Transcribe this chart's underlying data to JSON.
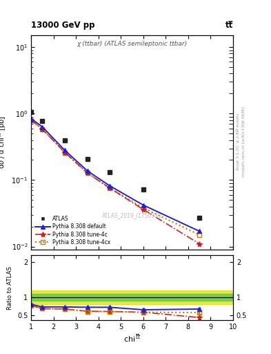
{
  "title_left": "13000 GeV pp",
  "title_right": "tt̅",
  "main_title": "χ (ttbar) (ATLAS semileptonic ttbar)",
  "watermark": "ATLAS_2019_I1750330",
  "right_label1": "Rivet 3.1.10; ≥ 2.8M events",
  "right_label2": "mcplots.cern.ch [arXiv:1306.3436]",
  "atlas_x": [
    1.0,
    1.5,
    2.5,
    3.5,
    4.5,
    6.0,
    8.5
  ],
  "atlas_y": [
    1.05,
    0.78,
    0.4,
    0.205,
    0.13,
    0.072,
    0.027
  ],
  "pythia_default_x": [
    1.0,
    1.5,
    2.5,
    3.5,
    4.5,
    6.0,
    8.5
  ],
  "pythia_default_y": [
    0.84,
    0.63,
    0.28,
    0.138,
    0.082,
    0.042,
    0.017
  ],
  "pythia_4c_x": [
    1.0,
    1.5,
    2.5,
    3.5,
    4.5,
    6.0,
    8.5
  ],
  "pythia_4c_y": [
    0.8,
    0.58,
    0.26,
    0.128,
    0.076,
    0.036,
    0.011
  ],
  "pythia_4cx_x": [
    1.0,
    1.5,
    2.5,
    3.5,
    4.5,
    6.0,
    8.5
  ],
  "pythia_4cx_y": [
    0.8,
    0.58,
    0.26,
    0.128,
    0.076,
    0.038,
    0.015
  ],
  "ratio_default_y": [
    0.8,
    0.73,
    0.73,
    0.72,
    0.72,
    0.65,
    0.67
  ],
  "ratio_4c_y": [
    0.77,
    0.68,
    0.67,
    0.61,
    0.6,
    0.58,
    0.43
  ],
  "ratio_4cx_y": [
    0.77,
    0.68,
    0.67,
    0.6,
    0.6,
    0.58,
    0.57
  ],
  "ratio_default_yerr": [
    0.025,
    0.02,
    0.02,
    0.025,
    0.025,
    0.032,
    0.045
  ],
  "ratio_4c_yerr": [
    0.025,
    0.02,
    0.02,
    0.025,
    0.025,
    0.032,
    0.045
  ],
  "ratio_4cx_yerr": [
    0.025,
    0.02,
    0.02,
    0.025,
    0.025,
    0.032,
    0.045
  ],
  "color_atlas": "#222222",
  "color_default": "#2222cc",
  "color_4c": "#cc2222",
  "color_4cx": "#cc7700",
  "xlim": [
    1.0,
    10.0
  ],
  "ylim_main": [
    0.009,
    15.0
  ],
  "ylim_ratio": [
    0.35,
    2.2
  ],
  "green_lo": 0.9,
  "green_hi": 1.1,
  "yellow_lo": 0.8,
  "yellow_hi": 1.2
}
